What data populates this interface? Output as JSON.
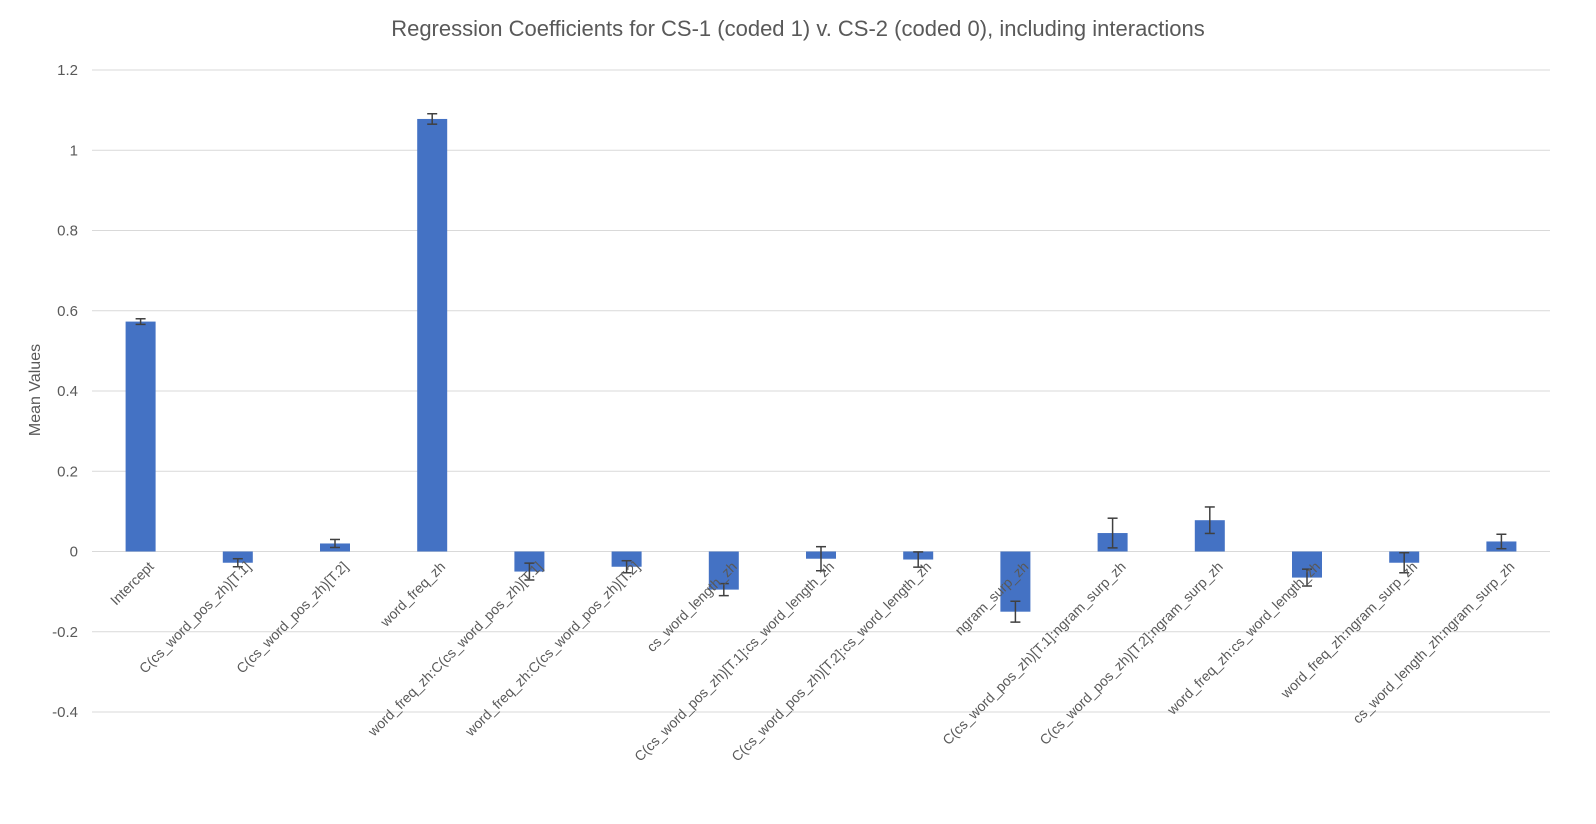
{
  "chart_data": {
    "type": "bar",
    "title": "Regression Coefficients for CS-1 (coded 1) v. CS-2 (coded 0), including interactions",
    "xlabel": "",
    "ylabel": "Mean Values",
    "ylim": [
      -0.4,
      1.2
    ],
    "yticks": [
      1.2,
      1,
      0.8,
      0.6,
      0.4,
      0.2,
      0,
      -0.2,
      -0.4
    ],
    "grid": true,
    "legend": "none",
    "bar_color": "#4472c4",
    "categories": [
      "Intercept",
      "C(cs_word_pos_zh)[T.1]",
      "C(cs_word_pos_zh)[T.2]",
      "word_freq_zh",
      "word_freq_zh:C(cs_word_pos_zh)[T.1]",
      "word_freq_zh:C(cs_word_pos_zh)[T.2]",
      "cs_word_length_zh",
      "C(cs_word_pos_zh)[T.1]:cs_word_length_zh",
      "C(cs_word_pos_zh)[T.2]:cs_word_length_zh",
      "ngram_surp_zh",
      "C(cs_word_pos_zh)[T.1]:ngram_surp_zh",
      "C(cs_word_pos_zh)[T.2]:ngram_surp_zh",
      "word_freq_zh:cs_word_length_zh",
      "word_freq_zh:ngram_surp_zh",
      "cs_word_length_zh:ngram_surp_zh"
    ],
    "values": [
      0.573,
      -0.028,
      0.02,
      1.078,
      -0.05,
      -0.038,
      -0.095,
      -0.018,
      -0.02,
      -0.15,
      0.046,
      0.078,
      -0.065,
      -0.028,
      0.025
    ],
    "errors": [
      0.007,
      0.01,
      0.01,
      0.013,
      0.021,
      0.015,
      0.015,
      0.03,
      0.019,
      0.026,
      0.037,
      0.033,
      0.021,
      0.025,
      0.018
    ]
  }
}
